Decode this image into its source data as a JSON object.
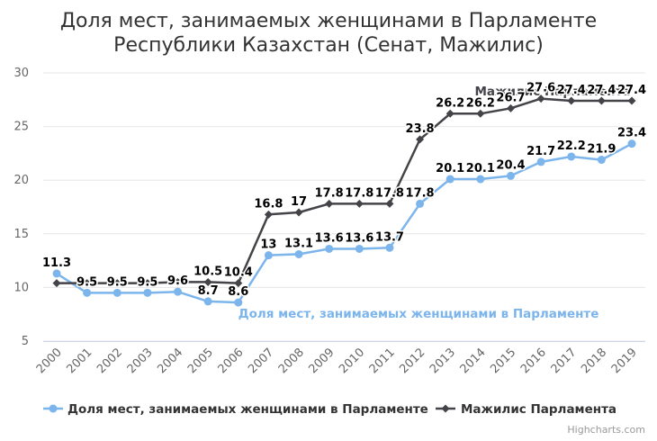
{
  "chart_data": {
    "type": "line",
    "title_line1": "Доля мест, занимаемых женщинами в Парламенте",
    "title_line2": "Республики Казахстан (Сенат, Мажилис)",
    "x": [
      "2000",
      "2001",
      "2002",
      "2003",
      "2004",
      "2005",
      "2006",
      "2007",
      "2008",
      "2009",
      "2010",
      "2011",
      "2012",
      "2013",
      "2014",
      "2015",
      "2016",
      "2017",
      "2018",
      "2019"
    ],
    "ylim": [
      5,
      30
    ],
    "yticks": [
      "5",
      "10",
      "15",
      "20",
      "25",
      "30"
    ],
    "grid": true,
    "legend_position": "bottom",
    "series": [
      {
        "name": "Доля мест, занимаемых женщинами в Парламенте",
        "color": "#7cb5ec",
        "marker": "circle",
        "values": [
          11.3,
          9.5,
          9.5,
          9.5,
          9.6,
          8.7,
          8.6,
          13,
          13.1,
          13.6,
          13.6,
          13.7,
          17.8,
          20.1,
          20.1,
          20.4,
          21.7,
          22.2,
          21.9,
          23.4
        ],
        "labels": [
          "11.3",
          "9.5",
          "9.5",
          "9.5",
          "9.6",
          "8.7",
          "8.6",
          "13",
          "13.1",
          "13.6",
          "13.6",
          "13.7",
          "17.8",
          "20.1",
          "20.1",
          "20.4",
          "21.7",
          "22.2",
          "21.9",
          "23.4"
        ]
      },
      {
        "name": "Мажилис Парламента",
        "color": "#434348",
        "marker": "diamond",
        "values": [
          10.4,
          10.4,
          10.4,
          10.4,
          10.5,
          10.5,
          10.4,
          16.8,
          17,
          17.8,
          17.8,
          17.8,
          23.8,
          26.2,
          26.2,
          26.7,
          27.6,
          27.4,
          27.4,
          27.4
        ],
        "labels": [
          "",
          "",
          "",
          "",
          "",
          "10.5",
          "10.4",
          "16.8",
          "17",
          "17.8",
          "17.8",
          "17.8",
          "23.8",
          "26.2",
          "26.2",
          "26.7",
          "27.6",
          "27.4",
          "27.4",
          "27.4"
        ]
      }
    ],
    "series_annotations": [
      "Доля мест, занимаемых женщинами в Парламенте",
      "Мажилис Парламента"
    ],
    "credits": "Highcharts.com"
  }
}
